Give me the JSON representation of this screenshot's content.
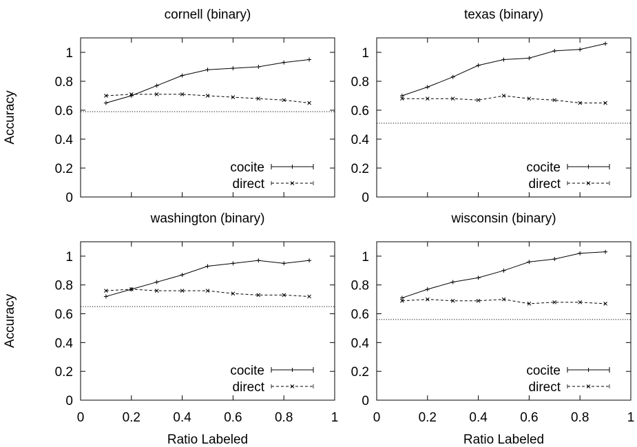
{
  "chart_data": [
    {
      "type": "line",
      "title": "cornell (binary)",
      "xlabel": "",
      "ylabel": "Accuracy",
      "xlim": [
        0,
        1
      ],
      "ylim": [
        0,
        1.1
      ],
      "x": [
        0.1,
        0.2,
        0.3,
        0.4,
        0.5,
        0.6,
        0.7,
        0.8,
        0.9
      ],
      "series": [
        {
          "name": "cocite",
          "values": [
            0.65,
            0.7,
            0.77,
            0.84,
            0.88,
            0.89,
            0.9,
            0.93,
            0.95
          ]
        },
        {
          "name": "direct",
          "values": [
            0.7,
            0.71,
            0.71,
            0.71,
            0.7,
            0.69,
            0.68,
            0.67,
            0.65
          ]
        }
      ],
      "baseline": 0.59,
      "legend_position": "bottom-right",
      "x_ticks": [
        "0",
        "0.2",
        "0.4",
        "0.6",
        "0.8",
        "1"
      ],
      "x_tick_labels_visible": false,
      "y_ticks": [
        "0",
        "0.2",
        "0.4",
        "0.6",
        "0.8",
        "1"
      ]
    },
    {
      "type": "line",
      "title": "texas (binary)",
      "xlabel": "",
      "ylabel": "",
      "xlim": [
        0,
        1
      ],
      "ylim": [
        0,
        1.1
      ],
      "x": [
        0.1,
        0.2,
        0.3,
        0.4,
        0.5,
        0.6,
        0.7,
        0.8,
        0.9
      ],
      "series": [
        {
          "name": "cocite",
          "values": [
            0.7,
            0.76,
            0.83,
            0.91,
            0.95,
            0.96,
            1.01,
            1.02,
            1.06
          ]
        },
        {
          "name": "direct",
          "values": [
            0.68,
            0.68,
            0.68,
            0.67,
            0.7,
            0.68,
            0.67,
            0.65,
            0.65
          ]
        }
      ],
      "baseline": 0.51,
      "legend_position": "bottom-right",
      "x_ticks": [
        "0",
        "0.2",
        "0.4",
        "0.6",
        "0.8",
        "1"
      ],
      "x_tick_labels_visible": false,
      "y_ticks": [
        "0",
        "0.2",
        "0.4",
        "0.6",
        "0.8",
        "1"
      ]
    },
    {
      "type": "line",
      "title": "washington (binary)",
      "xlabel": "Ratio Labeled",
      "ylabel": "Accuracy",
      "xlim": [
        0,
        1
      ],
      "ylim": [
        0,
        1.1
      ],
      "x": [
        0.1,
        0.2,
        0.3,
        0.4,
        0.5,
        0.6,
        0.7,
        0.8,
        0.9
      ],
      "series": [
        {
          "name": "cocite",
          "values": [
            0.72,
            0.77,
            0.82,
            0.87,
            0.93,
            0.95,
            0.97,
            0.95,
            0.97
          ]
        },
        {
          "name": "direct",
          "values": [
            0.76,
            0.77,
            0.76,
            0.76,
            0.76,
            0.74,
            0.73,
            0.73,
            0.72
          ]
        }
      ],
      "baseline": 0.65,
      "legend_position": "bottom-right",
      "x_ticks": [
        "0",
        "0.2",
        "0.4",
        "0.6",
        "0.8",
        "1"
      ],
      "x_tick_labels_visible": true,
      "y_ticks": [
        "0",
        "0.2",
        "0.4",
        "0.6",
        "0.8",
        "1"
      ]
    },
    {
      "type": "line",
      "title": "wisconsin (binary)",
      "xlabel": "Ratio Labeled",
      "ylabel": "",
      "xlim": [
        0,
        1
      ],
      "ylim": [
        0,
        1.1
      ],
      "x": [
        0.1,
        0.2,
        0.3,
        0.4,
        0.5,
        0.6,
        0.7,
        0.8,
        0.9
      ],
      "series": [
        {
          "name": "cocite",
          "values": [
            0.71,
            0.77,
            0.82,
            0.85,
            0.9,
            0.96,
            0.98,
            1.02,
            1.03
          ]
        },
        {
          "name": "direct",
          "values": [
            0.69,
            0.7,
            0.69,
            0.69,
            0.7,
            0.67,
            0.68,
            0.68,
            0.67
          ]
        }
      ],
      "baseline": 0.56,
      "legend_position": "bottom-right",
      "x_ticks": [
        "0",
        "0.2",
        "0.4",
        "0.6",
        "0.8",
        "1"
      ],
      "x_tick_labels_visible": true,
      "y_ticks": [
        "0",
        "0.2",
        "0.4",
        "0.6",
        "0.8",
        "1"
      ]
    }
  ]
}
